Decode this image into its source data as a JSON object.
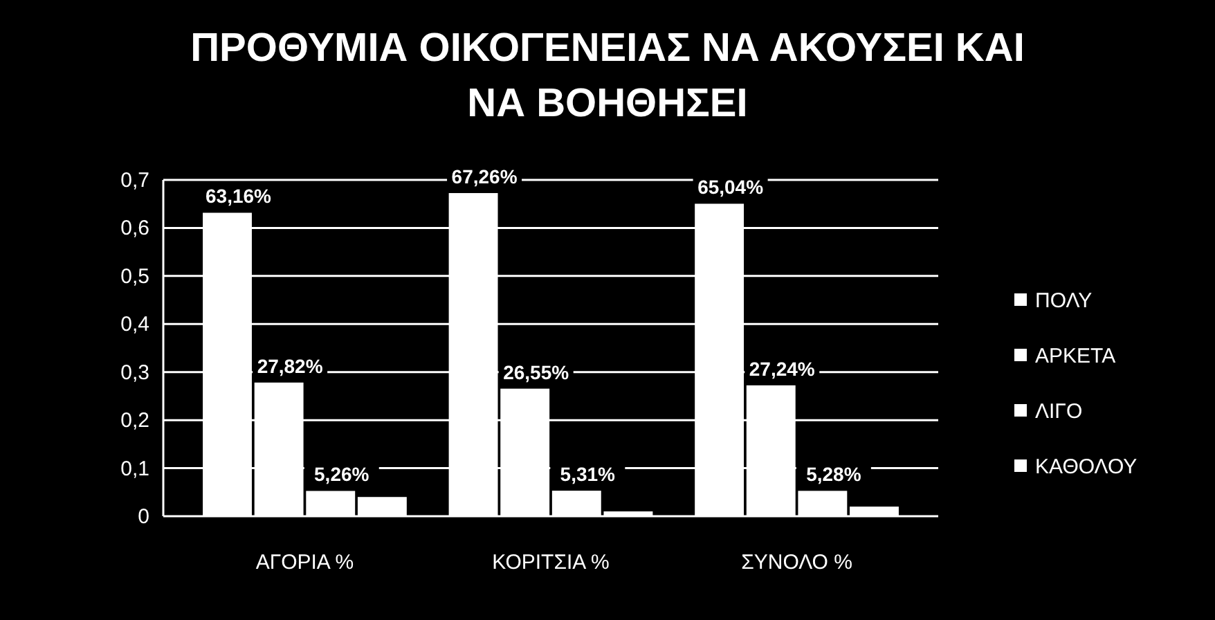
{
  "chart_data": {
    "type": "bar",
    "title": "ΠΡΟΘΥΜΙΑ ΟΙΚΟΓΕΝΕΙΑΣ ΝΑ ΑΚΟΥΣΕΙ ΚΑΙ ΝΑ ΒΟΗΘΗΣΕΙ",
    "categories": [
      "ΑΓΟΡΙΑ  %",
      "ΚΟΡΙΤΣΙΑ %",
      "ΣΥΝΟΛΟ %"
    ],
    "series": [
      {
        "name": "ΠΟΛΥ",
        "color": "#ffffff",
        "values": [
          0.6316,
          0.6726,
          0.6504
        ],
        "value_labels": [
          "63,16%",
          "67,26%",
          "65,04%"
        ]
      },
      {
        "name": "ΑΡΚΕΤΑ",
        "color": "#ffffff",
        "values": [
          0.2782,
          0.2655,
          0.2724
        ],
        "value_labels": [
          "27,82%",
          "26,55%",
          "27,24%"
        ]
      },
      {
        "name": "ΛΙΓΟ",
        "color": "#ffffff",
        "values": [
          0.0526,
          0.0531,
          0.0528
        ],
        "value_labels": [
          "5,26%",
          "5,31%",
          "5,28%"
        ]
      },
      {
        "name": "ΚΑΘΟΛΟΥ",
        "color": "#ffffff",
        "values": [
          0.04,
          0.01,
          0.02
        ],
        "value_labels": [
          null,
          null,
          null
        ]
      }
    ],
    "ylim": [
      0,
      0.7
    ],
    "yticks": [
      0,
      {
        "value": 0.1,
        "label": "0,1"
      },
      {
        "value": 0.2,
        "label": "0,2"
      },
      {
        "value": 0.3,
        "label": "0,3"
      },
      {
        "value": 0.4,
        "label": "0,4"
      },
      {
        "value": 0.5,
        "label": "0,5"
      },
      {
        "value": 0.6,
        "label": "0,6"
      },
      {
        "value": 0.7,
        "label": "0,7"
      }
    ],
    "grid": "y",
    "legend": "right"
  }
}
